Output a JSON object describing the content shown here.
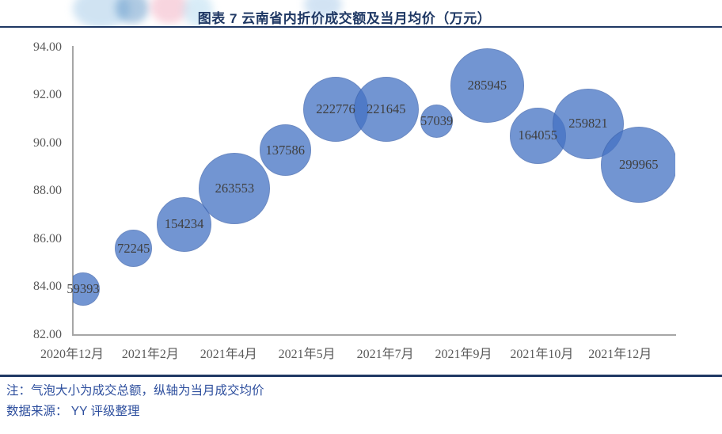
{
  "header": {
    "title": "图表 7 云南省内折价成交额及当月均价（万元）"
  },
  "chart_data": {
    "type": "scatter",
    "subtype": "bubble",
    "title": "图表 7 云南省内折价成交额及当月均价（万元）",
    "x_tick_labels": [
      "2020年12月",
      "2021年2月",
      "2021年4月",
      "2021年5月",
      "2021年7月",
      "2021年9月",
      "2021年10月",
      "2021年12月"
    ],
    "y_tick_labels": [
      "94.00",
      "92.00",
      "90.00",
      "88.00",
      "86.00",
      "84.00",
      "82.00"
    ],
    "ylim": [
      82,
      94
    ],
    "xlabel": "",
    "ylabel": "当月成交均价",
    "size_label": "成交总额",
    "legend": "none",
    "grid": "off",
    "bubbles": [
      {
        "label": "59393",
        "amount": 59393,
        "avg_price": 83.9
      },
      {
        "label": "72245",
        "amount": 72245,
        "avg_price": 85.6
      },
      {
        "label": "154234",
        "amount": 154234,
        "avg_price": 86.6
      },
      {
        "label": "263553",
        "amount": 263553,
        "avg_price": 88.1
      },
      {
        "label": "137586",
        "amount": 137586,
        "avg_price": 89.7
      },
      {
        "label": "222776",
        "amount": 222776,
        "avg_price": 91.4
      },
      {
        "label": "221645",
        "amount": 221645,
        "avg_price": 91.4
      },
      {
        "label": "57039",
        "amount": 57039,
        "avg_price": 90.9
      },
      {
        "label": "285945",
        "amount": 285945,
        "avg_price": 92.4
      },
      {
        "label": "164055",
        "amount": 164055,
        "avg_price": 90.3
      },
      {
        "label": "259821",
        "amount": 259821,
        "avg_price": 90.8
      },
      {
        "label": "299965",
        "amount": 299965,
        "avg_price": 89.1
      }
    ]
  },
  "colors": {
    "bubble_fill": "#4472C4",
    "bubble_opacity": 0.75,
    "title_navy": "#1F3864",
    "notes_blue": "#2E4F9E",
    "axis_gray": "#A6A6A6",
    "tick_text_gray": "#595959"
  },
  "notes": {
    "line1": "注：气泡大小为成交总额，纵轴为当月成交均价",
    "line2": "数据来源： YY 评级整理"
  }
}
